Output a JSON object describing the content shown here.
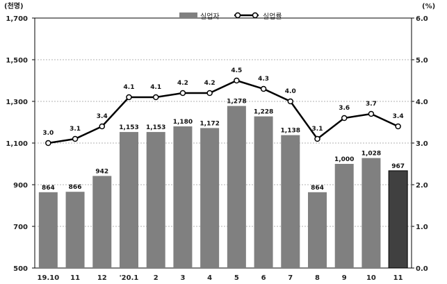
{
  "chart_data": {
    "type": "bar+line",
    "categories": [
      "19.10",
      "11",
      "12",
      "'20.1",
      "2",
      "3",
      "4",
      "5",
      "6",
      "7",
      "8",
      "9",
      "10",
      "11"
    ],
    "series": [
      {
        "name": "실업자",
        "type": "bar",
        "axis": "left",
        "values": [
          864,
          866,
          942,
          1153,
          1153,
          1180,
          1172,
          1278,
          1228,
          1138,
          864,
          1000,
          1028,
          967
        ],
        "labels": [
          "864",
          "866",
          "942",
          "1,153",
          "1,153",
          "1,180",
          "1,172",
          "1,278",
          "1,228",
          "1,138",
          "864",
          "1,000",
          "1,028",
          "967"
        ],
        "color": "#808080",
        "highlight_color": "#404040",
        "highlight_index": 13
      },
      {
        "name": "실업률",
        "type": "line",
        "axis": "right",
        "values": [
          3.0,
          3.1,
          3.4,
          4.1,
          4.1,
          4.2,
          4.2,
          4.5,
          4.3,
          4.0,
          3.1,
          3.6,
          3.7,
          3.4
        ],
        "labels": [
          "3.0",
          "3.1",
          "3.4",
          "4.1",
          "4.1",
          "4.2",
          "4.2",
          "4.5",
          "4.3",
          "4.0",
          "3.1",
          "3.6",
          "3.7",
          "3.4"
        ],
        "color": "#000000"
      }
    ],
    "left_axis": {
      "unit": "(천명)",
      "min": 500,
      "max": 1700,
      "ticks": [
        "500",
        "700",
        "900",
        "1,100",
        "1,300",
        "1,500",
        "1,700"
      ]
    },
    "right_axis": {
      "unit": "(%)",
      "min": 0,
      "max": 6,
      "ticks": [
        "0.0",
        "1.0",
        "2.0",
        "3.0",
        "4.0",
        "5.0",
        "6.0"
      ]
    },
    "legend": {
      "position": "top-center",
      "items": [
        "실업자",
        "실업률"
      ]
    },
    "grid": "horizontal-dotted"
  }
}
